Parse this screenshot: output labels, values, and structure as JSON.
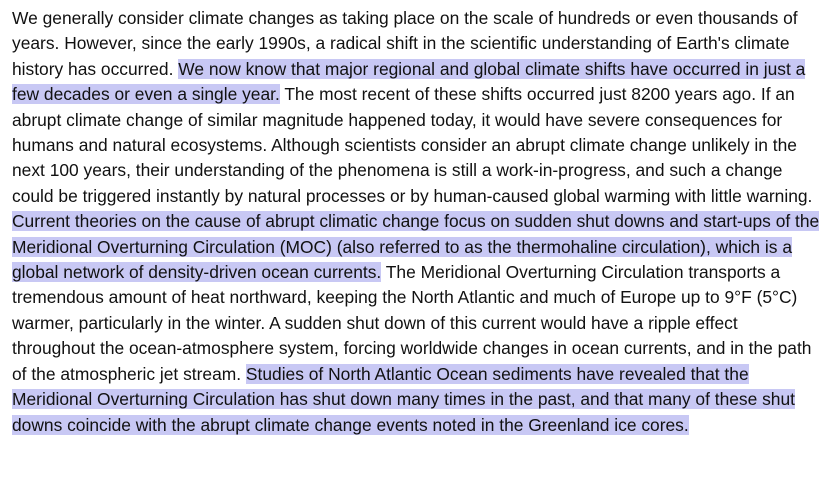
{
  "document": {
    "highlight_color": "#c8c8f4",
    "segments": [
      {
        "text": "We generally consider climate changes as taking place on the scale of hundreds or even thousands of years. However, since the early 1990s, a radical shift in the scientific understanding of Earth's climate history has occurred. ",
        "highlighted": false
      },
      {
        "text": "We now know that major regional and global climate shifts have occurred in just a few decades or even a single year.",
        "highlighted": true
      },
      {
        "text": " The most recent of these shifts occurred just 8200 years ago. If an abrupt climate change of similar magnitude happened today, it would have severe consequences for humans and natural ecosystems. Although scientists consider an abrupt climate change unlikely in the next 100 years, their understanding of the phenomena is still a work-in-progress, and such a change could be triggered instantly by natural processes or by human-caused global warming with little warning. ",
        "highlighted": false
      },
      {
        "text": "Current theories on the cause of abrupt climatic change focus on sudden shut downs and start-ups of the Meridional Overturning Circulation (MOC) (also referred to as the thermohaline circulation), which is a global network of density-driven ocean currents.",
        "highlighted": true
      },
      {
        "text": " The Meridional Overturning Circulation transports a tremendous amount of heat northward, keeping the North Atlantic and much of Europe up to 9°F (5°C) warmer, particularly in the winter. A sudden shut down of this current would have a ripple effect throughout the ocean-atmosphere system, forcing worldwide changes in ocean currents, and in the path of the atmospheric jet stream. ",
        "highlighted": false
      },
      {
        "text": "Studies of North Atlantic Ocean sediments have revealed that the Meridional Overturning Circulation has shut down many times in the past, and that many of these shut downs coincide with the abrupt climate change events noted in the Greenland ice cores.",
        "highlighted": true
      }
    ]
  }
}
